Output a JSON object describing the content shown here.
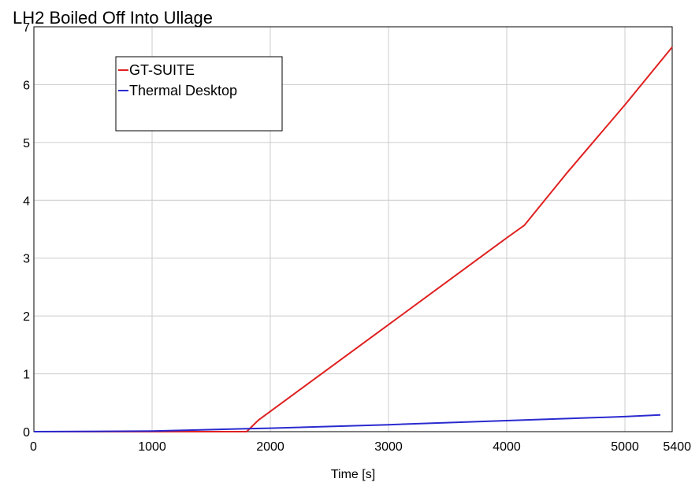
{
  "chart_data": {
    "type": "line",
    "title": "LH2 Boiled Off Into Ullage",
    "xlabel": "Time [s]",
    "ylabel": "",
    "xlim": [
      0,
      5400
    ],
    "ylim": [
      0,
      7
    ],
    "xticks": [
      0,
      1000,
      2000,
      3000,
      4000,
      5000,
      5400
    ],
    "xtick_labels": [
      "0",
      "1000",
      "2000",
      "3000",
      "4000",
      "5000",
      "5400"
    ],
    "yticks": [
      0,
      1,
      2,
      3,
      4,
      5,
      6,
      7
    ],
    "ytick_labels": [
      "0",
      "1",
      "2",
      "3",
      "4",
      "5",
      "6",
      "7"
    ],
    "grid": true,
    "legend_position": "top-left",
    "series": [
      {
        "name": "GT-SUITE",
        "color": "#e02020",
        "x": [
          0,
          1000,
          1800,
          1900,
          2000,
          3000,
          4000,
          4150,
          4500,
          5000,
          5400
        ],
        "y": [
          0,
          0,
          0,
          0.2,
          0.35,
          1.85,
          3.35,
          3.57,
          4.45,
          5.65,
          6.65
        ]
      },
      {
        "name": "Thermal Desktop",
        "color": "#2a2ad0",
        "x": [
          0,
          1000,
          1800,
          2000,
          3000,
          4000,
          5000,
          5300
        ],
        "y": [
          0,
          0.01,
          0.05,
          0.06,
          0.12,
          0.19,
          0.26,
          0.29
        ]
      }
    ]
  }
}
